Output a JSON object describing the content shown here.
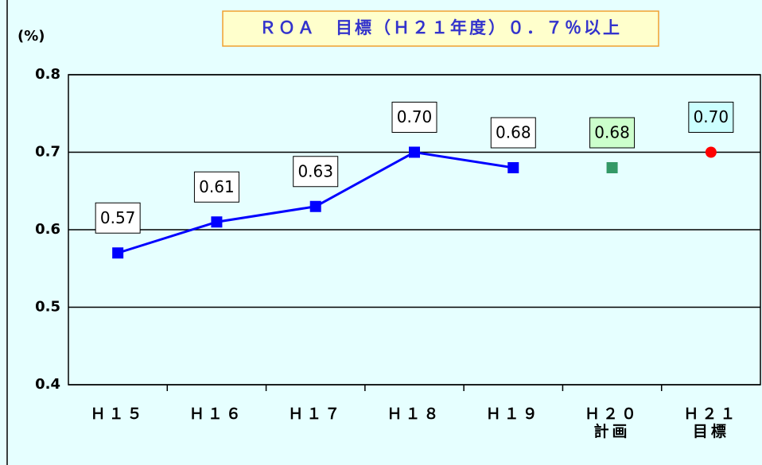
{
  "chart_data": {
    "type": "line",
    "title": "ＲＯＡ　目標（Ｈ２１年度）０．７％以上",
    "y_label": "(%)",
    "categories": [
      "Ｈ１５",
      "Ｈ１６",
      "Ｈ１７",
      "Ｈ１８",
      "Ｈ１９",
      "Ｈ２０\n計画",
      "Ｈ２１\n目標"
    ],
    "series": [
      {
        "color": "#0000ff",
        "marker": "square",
        "label_fill": "#ffffff",
        "values": [
          0.57,
          0.61,
          0.63,
          0.7,
          0.68,
          null,
          null
        ],
        "value_labels": [
          "0.57",
          "0.61",
          "0.63",
          "0.70",
          "0.68",
          null,
          null
        ]
      },
      {
        "color": "#339966",
        "marker": "square",
        "label_fill": "#ccffcc",
        "values": [
          null,
          null,
          null,
          null,
          null,
          0.68,
          null
        ],
        "value_labels": [
          null,
          null,
          null,
          null,
          null,
          "0.68",
          null
        ]
      },
      {
        "color": "#ff0000",
        "marker": "circle",
        "label_fill": "#ccffff",
        "values": [
          null,
          null,
          null,
          null,
          null,
          null,
          0.7
        ],
        "value_labels": [
          null,
          null,
          null,
          null,
          null,
          null,
          "0.70"
        ]
      }
    ],
    "ylim": [
      0.4,
      0.8
    ],
    "yticks": [
      0.4,
      0.5,
      0.6,
      0.7,
      0.8
    ],
    "grid": true
  }
}
